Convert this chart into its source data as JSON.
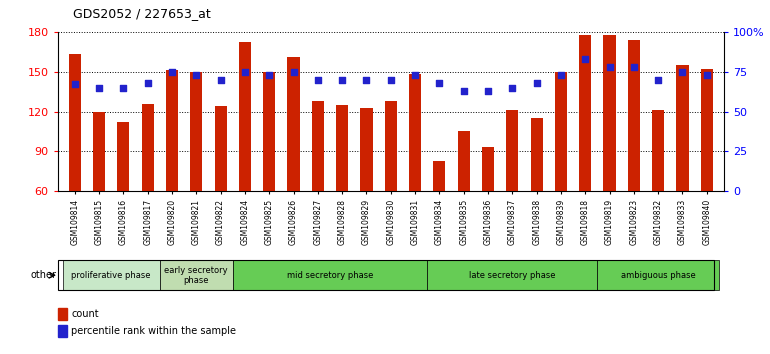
{
  "title": "GDS2052 / 227653_at",
  "samples": [
    "GSM109814",
    "GSM109815",
    "GSM109816",
    "GSM109817",
    "GSM109820",
    "GSM109821",
    "GSM109822",
    "GSM109824",
    "GSM109825",
    "GSM109826",
    "GSM109827",
    "GSM109828",
    "GSM109829",
    "GSM109830",
    "GSM109831",
    "GSM109834",
    "GSM109835",
    "GSM109836",
    "GSM109837",
    "GSM109838",
    "GSM109839",
    "GSM109818",
    "GSM109819",
    "GSM109823",
    "GSM109832",
    "GSM109833",
    "GSM109840"
  ],
  "counts": [
    163,
    120,
    112,
    126,
    151,
    150,
    124,
    172,
    150,
    161,
    128,
    125,
    123,
    128,
    148,
    83,
    105,
    93,
    121,
    115,
    150,
    178,
    178,
    174,
    121,
    155,
    152
  ],
  "percentiles": [
    67,
    65,
    65,
    68,
    75,
    73,
    70,
    75,
    73,
    75,
    70,
    70,
    70,
    70,
    73,
    68,
    63,
    63,
    65,
    68,
    73,
    83,
    78,
    78,
    70,
    75,
    73
  ],
  "ylim_left": [
    60,
    180
  ],
  "ylim_right": [
    0,
    100
  ],
  "yticks_left": [
    60,
    90,
    120,
    150,
    180
  ],
  "yticks_right": [
    0,
    25,
    50,
    75,
    100
  ],
  "ytick_labels_right": [
    "0",
    "25",
    "50",
    "75",
    "100%"
  ],
  "phase_configs": [
    {
      "label": "proliferative phase",
      "start": 0,
      "end": 4,
      "color": "#c8e8c8"
    },
    {
      "label": "early secretory\nphase",
      "start": 4,
      "end": 7,
      "color": "#c0ddb0"
    },
    {
      "label": "mid secretory phase",
      "start": 7,
      "end": 15,
      "color": "#66cc55"
    },
    {
      "label": "late secretory phase",
      "start": 15,
      "end": 22,
      "color": "#66cc55"
    },
    {
      "label": "ambiguous phase",
      "start": 22,
      "end": 27,
      "color": "#66cc55"
    }
  ],
  "bar_color": "#cc2200",
  "dot_color": "#2222cc",
  "bar_width": 0.5,
  "tick_bg_color": "#d8d8d8"
}
